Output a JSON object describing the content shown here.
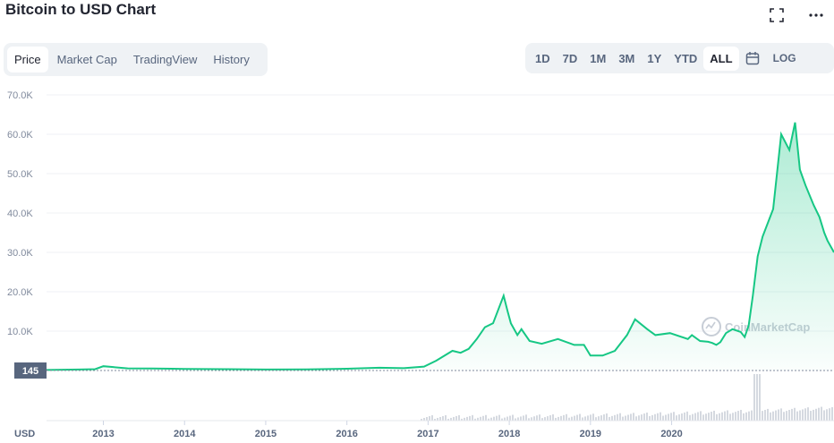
{
  "title": "Bitcoin to USD Chart",
  "icons": {
    "fullscreen": "fullscreen-icon",
    "more": "more-icon",
    "calendar": "calendar-icon"
  },
  "tabs": [
    {
      "label": "Price",
      "active": true
    },
    {
      "label": "Market Cap",
      "active": false
    },
    {
      "label": "TradingView",
      "active": false
    },
    {
      "label": "History",
      "active": false
    }
  ],
  "ranges": [
    {
      "label": "1D",
      "active": false
    },
    {
      "label": "7D",
      "active": false
    },
    {
      "label": "1M",
      "active": false
    },
    {
      "label": "3M",
      "active": false
    },
    {
      "label": "1Y",
      "active": false
    },
    {
      "label": "YTD",
      "active": false
    },
    {
      "label": "ALL",
      "active": true
    }
  ],
  "log_label": "LOG",
  "watermark": "CoinMarketCap",
  "colors": {
    "line": "#16c784",
    "accent": "#3861fb",
    "price_tag": "#58667e"
  },
  "chart_data": {
    "type": "area",
    "x_unit": "year",
    "ylim": [
      0,
      70000
    ],
    "yticks": [
      10000,
      20000,
      30000,
      40000,
      50000,
      60000,
      70000
    ],
    "ytick_labels": [
      "10.0K",
      "20.0K",
      "30.0K",
      "40.0K",
      "50.0K",
      "60.0K",
      "70.0K"
    ],
    "xticks": [
      2013,
      2014,
      2015,
      2016,
      2017,
      2018,
      2019,
      2020
    ],
    "xtick_labels": [
      "2013",
      "2014",
      "2015",
      "2016",
      "2017",
      "2018",
      "2019",
      "2020"
    ],
    "current_price_label": "145",
    "currency_label": "USD",
    "grid": true,
    "series": [
      {
        "x": [
          2012.3,
          2012.7,
          2012.9,
          2013.0,
          2013.3,
          2013.6,
          2013.85,
          2014.0,
          2014.5,
          2015.0,
          2015.5,
          2016.0,
          2016.4,
          2016.7,
          2016.95,
          2017.1,
          2017.3,
          2017.4,
          2017.5,
          2017.6,
          2017.7,
          2017.8,
          2017.93,
          2017.98,
          2018.02,
          2018.1,
          2018.15,
          2018.25,
          2018.4,
          2018.6,
          2018.8,
          2018.92,
          2019.0,
          2019.15,
          2019.3,
          2019.45,
          2019.55,
          2019.7,
          2019.8,
          2019.98,
          2020.2,
          2020.25,
          2020.35,
          2020.45,
          2020.5,
          2020.55,
          2020.6,
          2020.67,
          2020.75,
          2020.85,
          2020.9,
          2020.95,
          2021.0,
          2021.06,
          2021.12,
          2021.25,
          2021.35,
          2021.45,
          2021.52,
          2021.58,
          2021.65,
          2021.75,
          2021.82,
          2021.88,
          2021.92,
          2022.0
        ],
        "y": [
          145,
          250,
          350,
          1100,
          550,
          500,
          450,
          400,
          350,
          250,
          300,
          450,
          700,
          600,
          1000,
          2500,
          5000,
          4500,
          5500,
          8000,
          11000,
          12000,
          19000,
          15000,
          12000,
          9000,
          10500,
          7500,
          6800,
          8000,
          6500,
          6500,
          3800,
          3800,
          5000,
          9000,
          13000,
          10500,
          9000,
          9500,
          8000,
          9000,
          7500,
          7300,
          7000,
          6500,
          7200,
          9500,
          10500,
          9800,
          8500,
          11500,
          19000,
          29000,
          34000,
          41000,
          60000,
          56000,
          63000,
          51000,
          47000,
          42000,
          39000,
          35000,
          33000,
          30000
        ]
      }
    ]
  }
}
